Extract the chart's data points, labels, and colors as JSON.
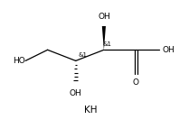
{
  "background": "#ffffff",
  "line_color": "#000000",
  "text_color": "#000000",
  "font_size": 6.5,
  "small_font_size": 5.0,
  "kh_font_size": 7.5,
  "xlim": [
    0,
    10
  ],
  "ylim": [
    0,
    7.5
  ],
  "lw": 0.9
}
